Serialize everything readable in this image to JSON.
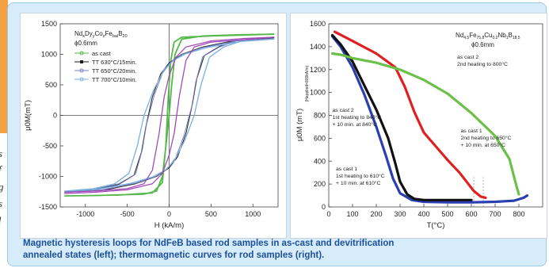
{
  "left_slice": {
    "fragments": [
      "s",
      "f",
      "g",
      "s",
      "l"
    ]
  },
  "caption": {
    "line1": "Magnetic hysteresis loops for NdFeB based rod samples in as-cast and devitrification",
    "line2": "annealed states (left); thermomagnetic curves for rod samples (right)."
  },
  "colors": {
    "panel_bg": "#d7ecfa",
    "caption": "#1c4f9c",
    "as_cast": "#55b84a",
    "tt630": "#1d1d1d",
    "tt650": "#7a82c4",
    "tt700": "#7ab0e0",
    "tt_purple": "#a24bb8",
    "black": "#111111",
    "red": "#e02020",
    "green": "#6bc04a",
    "blue": "#2a3fb0"
  },
  "chart_data": [
    {
      "type": "line",
      "composition_prefix": "Nd",
      "composition_html": "Nd<sub>x</sub>Dy<sub>y</sub>Co<sub>z</sub>Fe<sub>bal</sub>B<sub>20</sub>",
      "diameter": "ϕ0.6mm",
      "xlabel": "H (kA/m)",
      "ylabel": "μ0M(mT)",
      "xlim": [
        -1300,
        1300
      ],
      "ylim": [
        -1500,
        1500
      ],
      "xticks": [
        -1000,
        -500,
        0,
        500,
        1000
      ],
      "yticks": [
        -1500,
        -1000,
        -500,
        0,
        500,
        1000,
        1500
      ],
      "legend": [
        "as cast",
        "TT 630°C/15min.",
        "TT 650°C/20min.",
        "TT 700°C/10min."
      ],
      "series": [
        {
          "name": "as cast",
          "upper": [
            [
              -1250,
              -1320
            ],
            [
              -800,
              -1310
            ],
            [
              -300,
              -1290
            ],
            [
              -150,
              -1240
            ],
            [
              -80,
              -1000
            ],
            [
              -30,
              -400
            ],
            [
              0,
              0
            ],
            [
              30,
              500
            ],
            [
              70,
              1000
            ],
            [
              150,
              1250
            ],
            [
              400,
              1300
            ],
            [
              800,
              1320
            ],
            [
              1250,
              1330
            ]
          ],
          "lower": [
            [
              1250,
              1330
            ],
            [
              500,
              1300
            ],
            [
              150,
              1280
            ],
            [
              60,
              1200
            ],
            [
              20,
              900
            ],
            [
              -10,
              300
            ],
            [
              -40,
              -500
            ],
            [
              -80,
              -1100
            ],
            [
              -200,
              -1270
            ],
            [
              -600,
              -1305
            ],
            [
              -1250,
              -1320
            ]
          ]
        },
        {
          "name": "TT 630°C/15min.",
          "upper": [
            [
              -1250,
              -1260
            ],
            [
              -900,
              -1220
            ],
            [
              -600,
              -1130
            ],
            [
              -420,
              -980
            ],
            [
              -330,
              -600
            ],
            [
              -280,
              -200
            ],
            [
              -200,
              300
            ],
            [
              -100,
              680
            ],
            [
              0,
              860
            ],
            [
              150,
              1000
            ],
            [
              400,
              1120
            ],
            [
              800,
              1230
            ],
            [
              1250,
              1270
            ]
          ],
          "lower": [
            [
              1250,
              1270
            ],
            [
              800,
              1230
            ],
            [
              600,
              1130
            ],
            [
              420,
              980
            ],
            [
              330,
              600
            ],
            [
              280,
              200
            ],
            [
              200,
              -300
            ],
            [
              100,
              -680
            ],
            [
              0,
              -860
            ],
            [
              -150,
              -1000
            ],
            [
              -400,
              -1120
            ],
            [
              -800,
              -1230
            ],
            [
              -1250,
              -1260
            ]
          ]
        },
        {
          "name": "TT 650°C/20min.",
          "upper": [
            [
              -1250,
              -1250
            ],
            [
              -900,
              -1210
            ],
            [
              -600,
              -1120
            ],
            [
              -400,
              -960
            ],
            [
              -320,
              -560
            ],
            [
              -270,
              -150
            ],
            [
              -180,
              320
            ],
            [
              -80,
              690
            ],
            [
              20,
              870
            ],
            [
              160,
              1000
            ],
            [
              400,
              1110
            ],
            [
              800,
              1220
            ],
            [
              1250,
              1260
            ]
          ],
          "lower": [
            [
              1250,
              1260
            ],
            [
              800,
              1220
            ],
            [
              600,
              1120
            ],
            [
              400,
              960
            ],
            [
              320,
              560
            ],
            [
              270,
              150
            ],
            [
              180,
              -320
            ],
            [
              80,
              -690
            ],
            [
              -20,
              -870
            ],
            [
              -160,
              -1000
            ],
            [
              -400,
              -1110
            ],
            [
              -800,
              -1220
            ],
            [
              -1250,
              -1250
            ]
          ]
        },
        {
          "name": "TT 700°C/10min.",
          "upper": [
            [
              -1250,
              -1240
            ],
            [
              -900,
              -1200
            ],
            [
              -650,
              -1120
            ],
            [
              -480,
              -950
            ],
            [
              -380,
              -500
            ],
            [
              -300,
              0
            ],
            [
              -190,
              400
            ],
            [
              -60,
              750
            ],
            [
              50,
              900
            ],
            [
              200,
              1010
            ],
            [
              450,
              1110
            ],
            [
              850,
              1210
            ],
            [
              1250,
              1250
            ]
          ],
          "lower": [
            [
              1250,
              1250
            ],
            [
              850,
              1210
            ],
            [
              650,
              1120
            ],
            [
              480,
              950
            ],
            [
              380,
              500
            ],
            [
              300,
              0
            ],
            [
              190,
              -400
            ],
            [
              60,
              -750
            ],
            [
              -50,
              -900
            ],
            [
              -200,
              -1010
            ],
            [
              -450,
              -1110
            ],
            [
              -850,
              -1210
            ],
            [
              -1250,
              -1240
            ]
          ]
        },
        {
          "name": "purple",
          "upper": [
            [
              -1250,
              -1260
            ],
            [
              -900,
              -1240
            ],
            [
              -500,
              -1200
            ],
            [
              -300,
              -1120
            ],
            [
              -200,
              -900
            ],
            [
              -120,
              -300
            ],
            [
              -60,
              300
            ],
            [
              0,
              650
            ],
            [
              80,
              950
            ],
            [
              200,
              1120
            ],
            [
              500,
              1220
            ],
            [
              900,
              1260
            ],
            [
              1250,
              1280
            ]
          ],
          "lower": [
            [
              1250,
              1280
            ],
            [
              900,
              1240
            ],
            [
              500,
              1200
            ],
            [
              300,
              1120
            ],
            [
              200,
              900
            ],
            [
              120,
              300
            ],
            [
              60,
              -300
            ],
            [
              0,
              -650
            ],
            [
              -80,
              -950
            ],
            [
              -200,
              -1120
            ],
            [
              -500,
              -1220
            ],
            [
              -900,
              -1260
            ],
            [
              -1250,
              -1280
            ]
          ]
        }
      ]
    },
    {
      "type": "line",
      "composition_html": "Nd<sub>4.5</sub>Fe<sub>75.8</sub>Cu<sub>0.2</sub>Nb<sub>1</sub>B<sub>18.5</sub>",
      "diameter": "ϕ0.6mm",
      "xlabel": "T(°C)",
      "ylabel": "μ0M (mT)",
      "ylabel_sub": "(Happlied=800kA/m)",
      "xlim": [
        0,
        900
      ],
      "ylim": [
        0,
        1600
      ],
      "xticks": [
        0,
        100,
        200,
        300,
        400,
        500,
        600,
        700,
        800
      ],
      "yticks": [
        0,
        200,
        400,
        600,
        800,
        1000,
        1200,
        1400,
        1600
      ],
      "annotations": [
        {
          "lines": [
            "as cast 2",
            "2nd heating to 800°C"
          ],
          "x": 540,
          "y": 1295
        },
        {
          "lines": [
            "as cast 1",
            "2nd heating to 650°C",
            "+ 10 min. at 650°C"
          ],
          "x": 555,
          "y": 650
        },
        {
          "lines": [
            "as cast 2",
            "1st heating to 840°C",
            "+ 10 min. at 840°C"
          ],
          "x": 15,
          "y": 830
        },
        {
          "lines": [
            "as cast 1",
            "1st heating to 610°C",
            "+ 10 min. at 610°C"
          ],
          "x": 30,
          "y": 320
        }
      ],
      "series": [
        {
          "name": "blue",
          "points": [
            [
              15,
              1490
            ],
            [
              50,
              1400
            ],
            [
              100,
              1220
            ],
            [
              150,
              980
            ],
            [
              200,
              700
            ],
            [
              240,
              450
            ],
            [
              270,
              250
            ],
            [
              300,
              120
            ],
            [
              350,
              60
            ],
            [
              400,
              45
            ],
            [
              500,
              40
            ],
            [
              600,
              40
            ],
            [
              700,
              45
            ],
            [
              780,
              55
            ],
            [
              820,
              80
            ],
            [
              835,
              100
            ]
          ]
        },
        {
          "name": "black",
          "points": [
            [
              15,
              1500
            ],
            [
              50,
              1420
            ],
            [
              100,
              1270
            ],
            [
              150,
              1060
            ],
            [
              200,
              850
            ],
            [
              250,
              600
            ],
            [
              280,
              380
            ],
            [
              300,
              220
            ],
            [
              330,
              110
            ],
            [
              360,
              70
            ],
            [
              400,
              60
            ],
            [
              500,
              60
            ],
            [
              600,
              60
            ]
          ]
        },
        {
          "name": "red",
          "points": [
            [
              25,
              1530
            ],
            [
              100,
              1450
            ],
            [
              200,
              1340
            ],
            [
              280,
              1220
            ],
            [
              320,
              1050
            ],
            [
              360,
              830
            ],
            [
              400,
              650
            ],
            [
              450,
              530
            ],
            [
              500,
              410
            ],
            [
              550,
              300
            ],
            [
              580,
              220
            ],
            [
              610,
              140
            ],
            [
              640,
              90
            ],
            [
              660,
              80
            ]
          ]
        },
        {
          "name": "green",
          "points": [
            [
              15,
              1340
            ],
            [
              50,
              1330
            ],
            [
              100,
              1300
            ],
            [
              200,
              1260
            ],
            [
              300,
              1200
            ],
            [
              400,
              1110
            ],
            [
              500,
              990
            ],
            [
              600,
              820
            ],
            [
              700,
              620
            ],
            [
              760,
              420
            ],
            [
              790,
              180
            ],
            [
              800,
              110
            ]
          ]
        }
      ]
    }
  ]
}
